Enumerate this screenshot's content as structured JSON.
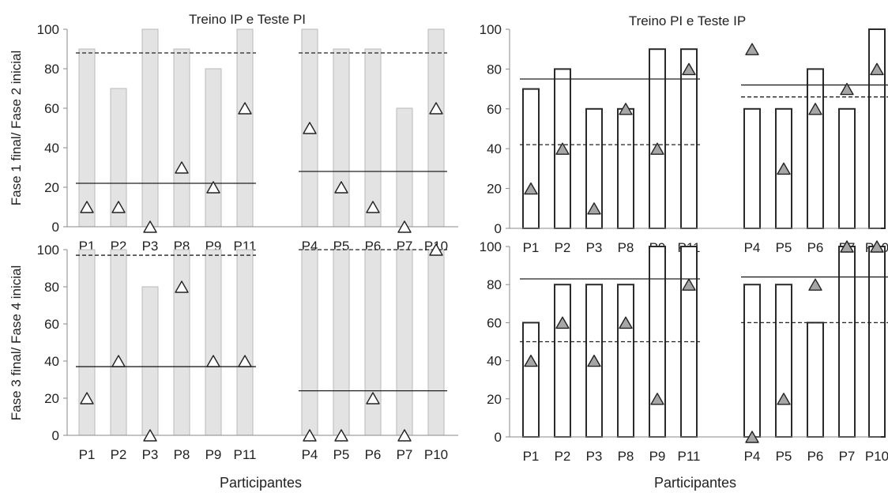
{
  "figure": {
    "xlabel": "Participantes",
    "ylabel_top": "Fase 1 final/ Fase 2 inicial",
    "ylabel_bottom": "Fase 3 final/ Fase 4 inicial"
  },
  "chart_data": [
    {
      "id": "top-left",
      "type": "bar",
      "title": "Treino  IP e Teste PI",
      "style": "gray-bars-white-triangles",
      "ylim": [
        0,
        100
      ],
      "yticks": [
        0,
        20,
        40,
        60,
        80,
        100
      ],
      "groups": [
        {
          "categories": [
            "P1",
            "P2",
            "P3",
            "P8",
            "P9",
            "P11"
          ],
          "bars": [
            90,
            70,
            100,
            90,
            80,
            100
          ],
          "triangles": [
            10,
            10,
            0,
            30,
            20,
            60
          ],
          "dashed_line": 88,
          "solid_line": 22
        },
        {
          "categories": [
            "P4",
            "P5",
            "P6",
            "P7",
            "P10"
          ],
          "bars": [
            100,
            90,
            90,
            60,
            100
          ],
          "triangles": [
            50,
            20,
            10,
            0,
            60
          ],
          "dashed_line": 88,
          "solid_line": 28
        }
      ]
    },
    {
      "id": "top-right",
      "type": "bar",
      "title": "Treino  PI e Teste IP",
      "style": "white-bars-gray-triangles",
      "ylim": [
        0,
        100
      ],
      "yticks": [
        0,
        20,
        40,
        60,
        80,
        100
      ],
      "groups": [
        {
          "categories": [
            "P1",
            "P2",
            "P3",
            "P8",
            "P9",
            "P11"
          ],
          "bars": [
            70,
            80,
            60,
            60,
            90,
            90
          ],
          "triangles": [
            20,
            40,
            10,
            60,
            40,
            80
          ],
          "dashed_line": 42,
          "solid_line": 75
        },
        {
          "categories": [
            "P4",
            "P5",
            "P6",
            "P7",
            "P10"
          ],
          "bars": [
            60,
            60,
            80,
            60,
            100
          ],
          "triangles": [
            90,
            30,
            60,
            70,
            80
          ],
          "dashed_line": 66,
          "solid_line": 72
        }
      ]
    },
    {
      "id": "bottom-left",
      "type": "bar",
      "title": "",
      "style": "gray-bars-white-triangles",
      "ylim": [
        0,
        100
      ],
      "yticks": [
        0,
        20,
        40,
        60,
        80,
        100
      ],
      "groups": [
        {
          "categories": [
            "P1",
            "P2",
            "P3",
            "P8",
            "P9",
            "P11"
          ],
          "bars": [
            100,
            100,
            80,
            100,
            100,
            100
          ],
          "triangles": [
            20,
            40,
            0,
            80,
            40,
            40
          ],
          "dashed_line": 97,
          "solid_line": 37
        },
        {
          "categories": [
            "P4",
            "P5",
            "P6",
            "P7",
            "P10"
          ],
          "bars": [
            100,
            100,
            100,
            100,
            100
          ],
          "triangles": [
            0,
            0,
            20,
            0,
            100
          ],
          "dashed_line": 100,
          "solid_line": 24
        }
      ]
    },
    {
      "id": "bottom-right",
      "type": "bar",
      "title": "",
      "style": "white-bars-gray-triangles",
      "ylim": [
        0,
        100
      ],
      "yticks": [
        0,
        20,
        40,
        60,
        80,
        100
      ],
      "groups": [
        {
          "categories": [
            "P1",
            "P2",
            "P3",
            "P8",
            "P9",
            "P11"
          ],
          "bars": [
            60,
            80,
            80,
            80,
            100,
            100
          ],
          "triangles": [
            40,
            60,
            40,
            60,
            20,
            80
          ],
          "dashed_line": 50,
          "solid_line": 83
        },
        {
          "categories": [
            "P4",
            "P5",
            "P6",
            "P7",
            "P10"
          ],
          "bars": [
            80,
            80,
            60,
            100,
            100
          ],
          "triangles": [
            0,
            20,
            80,
            100,
            100
          ],
          "dashed_line": 60,
          "solid_line": 84
        }
      ]
    }
  ],
  "colors": {
    "gray_bar_fill": "#e3e3e3",
    "gray_bar_stroke": "#b9b9b9",
    "white_bar_stroke": "#2a2a2a",
    "gray_triangle_fill": "#a6a6a6",
    "axis": "#8a8a8a",
    "line": "#222222"
  }
}
